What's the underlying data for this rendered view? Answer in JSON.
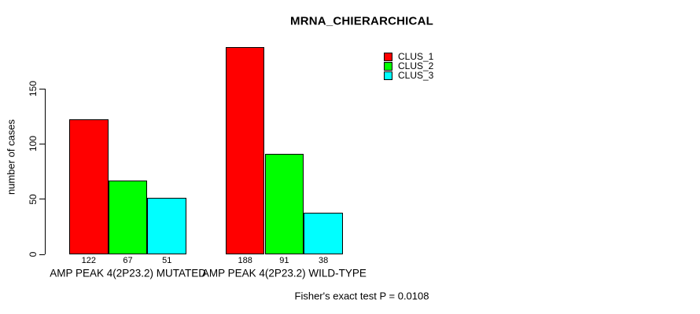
{
  "title": "MRNA_CHIERARCHICAL",
  "chart_data": {
    "type": "bar",
    "title": "MRNA_CHIERARCHICAL",
    "xlabel": "",
    "ylabel": "number of cases",
    "ylim": [
      0,
      150
    ],
    "yticks": [
      0,
      50,
      100,
      150
    ],
    "grid": false,
    "legend_position": "top-right",
    "categories": [
      "AMP PEAK 4(2P23.2) MUTATED",
      "AMP PEAK 4(2P23.2) WILD-TYPE"
    ],
    "series": [
      {
        "name": "CLUS_1",
        "color": "#ff0000",
        "values": [
          122,
          188
        ]
      },
      {
        "name": "CLUS_2",
        "color": "#00ff00",
        "values": [
          67,
          91
        ]
      },
      {
        "name": "CLUS_3",
        "color": "#00ffff",
        "values": [
          51,
          38
        ]
      }
    ],
    "bar_value_labels": [
      [
        122,
        67,
        51
      ],
      [
        188,
        91,
        38
      ]
    ],
    "annotation": "Fisher's exact test P = 0.0108"
  },
  "colors": {
    "clus_1": "#ff0000",
    "clus_2": "#00ff00",
    "clus_3": "#00ffff",
    "axis": "#000000",
    "background": "#ffffff"
  }
}
